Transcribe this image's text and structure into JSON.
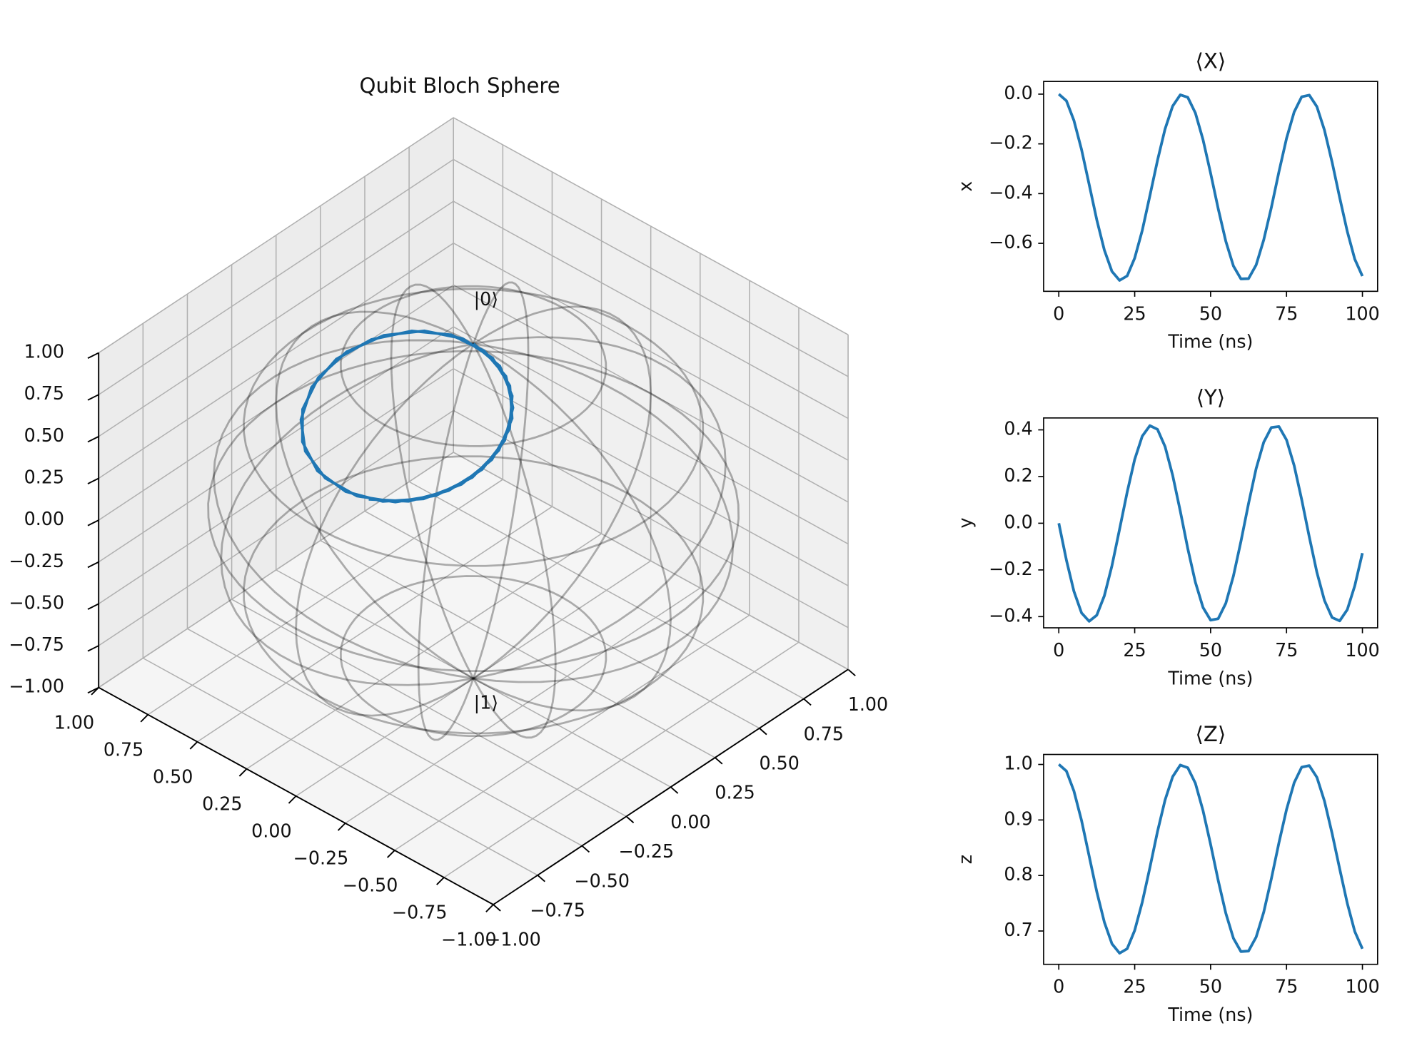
{
  "chart_data": [
    {
      "type": "bloch3d",
      "title": "Qubit Bloch Sphere",
      "annotations": [
        "|0⟩",
        "|1⟩"
      ],
      "color": "#1f77b4",
      "x": [
        0,
        -0.027,
        -0.106,
        -0.223,
        -0.363,
        -0.505,
        -0.627,
        -0.713,
        -0.749,
        -0.731,
        -0.66,
        -0.548,
        -0.409,
        -0.267,
        -0.14,
        -0.048,
        -0.003,
        -0.013,
        -0.076,
        -0.183,
        -0.318,
        -0.461,
        -0.592,
        -0.691,
        -0.743,
        -0.742,
        -0.687,
        -0.586,
        -0.456,
        -0.312,
        -0.178,
        -0.072,
        -0.011,
        -0.004,
        -0.05,
        -0.145,
        -0.273,
        -0.416,
        -0.552,
        -0.664,
        -0.732
      ],
      "y": [
        0,
        -0.158,
        -0.292,
        -0.384,
        -0.42,
        -0.394,
        -0.311,
        -0.182,
        -0.026,
        0.133,
        0.273,
        0.373,
        0.418,
        0.402,
        0.328,
        0.205,
        0.052,
        -0.109,
        -0.253,
        -0.361,
        -0.415,
        -0.409,
        -0.343,
        -0.226,
        -0.078,
        0.084,
        0.234,
        0.347,
        0.41,
        0.414,
        0.357,
        0.247,
        0.102,
        -0.058,
        -0.21,
        -0.331,
        -0.404,
        -0.418,
        -0.37,
        -0.268,
        -0.128
      ],
      "z": [
        1,
        0.988,
        0.952,
        0.899,
        0.835,
        0.771,
        0.716,
        0.677,
        0.66,
        0.668,
        0.701,
        0.752,
        0.814,
        0.879,
        0.936,
        0.978,
        0.999,
        0.994,
        0.966,
        0.917,
        0.856,
        0.791,
        0.732,
        0.687,
        0.663,
        0.664,
        0.689,
        0.734,
        0.794,
        0.859,
        0.919,
        0.967,
        0.995,
        0.998,
        0.977,
        0.934,
        0.876,
        0.812,
        0.75,
        0.699,
        0.668
      ],
      "xlim": [
        -1,
        1
      ],
      "ylim": [
        -1,
        1
      ],
      "zlim": [
        -1,
        1
      ],
      "xticks": [
        {
          "value": -1,
          "label": "−1.00"
        },
        {
          "value": -0.75,
          "label": "−0.75"
        },
        {
          "value": -0.5,
          "label": "−0.50"
        },
        {
          "value": -0.25,
          "label": "−0.25"
        },
        {
          "value": 0,
          "label": "0.00"
        },
        {
          "value": 0.25,
          "label": "0.25"
        },
        {
          "value": 0.5,
          "label": "0.50"
        },
        {
          "value": 0.75,
          "label": "0.75"
        },
        {
          "value": 1,
          "label": "1.00"
        }
      ],
      "yticks": [
        {
          "value": -1,
          "label": "−1.00"
        },
        {
          "value": -0.75,
          "label": "−0.75"
        },
        {
          "value": -0.5,
          "label": "−0.50"
        },
        {
          "value": -0.25,
          "label": "−0.25"
        },
        {
          "value": 0,
          "label": "0.00"
        },
        {
          "value": 0.25,
          "label": "0.25"
        },
        {
          "value": 0.5,
          "label": "0.50"
        },
        {
          "value": 0.75,
          "label": "0.75"
        },
        {
          "value": 1,
          "label": "1.00"
        }
      ],
      "zticks": [
        {
          "value": -1,
          "label": "−1.00"
        },
        {
          "value": -0.75,
          "label": "−0.75"
        },
        {
          "value": -0.5,
          "label": "−0.50"
        },
        {
          "value": -0.25,
          "label": "−0.25"
        },
        {
          "value": 0,
          "label": "0.00"
        },
        {
          "value": 0.25,
          "label": "0.25"
        },
        {
          "value": 0.5,
          "label": "0.50"
        },
        {
          "value": 0.75,
          "label": "0.75"
        },
        {
          "value": 1,
          "label": "1.00"
        }
      ]
    },
    {
      "type": "line",
      "title": "⟨X⟩",
      "xlabel": "Time (ns)",
      "ylabel": "x",
      "color": "#1f77b4",
      "x": [
        0,
        2.5,
        5,
        7.5,
        10,
        12.5,
        15,
        17.5,
        20,
        22.5,
        25,
        27.5,
        30,
        32.5,
        35,
        37.5,
        40,
        42.5,
        45,
        47.5,
        50,
        52.5,
        55,
        57.5,
        60,
        62.5,
        65,
        67.5,
        70,
        72.5,
        75,
        77.5,
        80,
        82.5,
        85,
        87.5,
        90,
        92.5,
        95,
        97.5,
        100
      ],
      "values": [
        0,
        -0.027,
        -0.106,
        -0.223,
        -0.363,
        -0.505,
        -0.627,
        -0.713,
        -0.749,
        -0.731,
        -0.66,
        -0.548,
        -0.409,
        -0.267,
        -0.14,
        -0.048,
        -0.003,
        -0.013,
        -0.076,
        -0.183,
        -0.318,
        -0.461,
        -0.592,
        -0.691,
        -0.743,
        -0.742,
        -0.687,
        -0.586,
        -0.456,
        -0.312,
        -0.178,
        -0.072,
        -0.011,
        -0.004,
        -0.05,
        -0.145,
        -0.273,
        -0.416,
        -0.552,
        -0.664,
        -0.732
      ],
      "xlim": [
        -5,
        105
      ],
      "ylim": [
        -0.793,
        0.051
      ],
      "xticks": [
        0,
        25,
        50,
        75,
        100
      ],
      "yticks": [
        {
          "value": -0.6,
          "label": "−0.6"
        },
        {
          "value": -0.4,
          "label": "−0.4"
        },
        {
          "value": -0.2,
          "label": "−0.2"
        },
        {
          "value": 0,
          "label": "0.0"
        }
      ]
    },
    {
      "type": "line",
      "title": "⟨Y⟩",
      "xlabel": "Time (ns)",
      "ylabel": "y",
      "color": "#1f77b4",
      "x": [
        0,
        2.5,
        5,
        7.5,
        10,
        12.5,
        15,
        17.5,
        20,
        22.5,
        25,
        27.5,
        30,
        32.5,
        35,
        37.5,
        40,
        42.5,
        45,
        47.5,
        50,
        52.5,
        55,
        57.5,
        60,
        62.5,
        65,
        67.5,
        70,
        72.5,
        75,
        77.5,
        80,
        82.5,
        85,
        87.5,
        90,
        92.5,
        95,
        97.5,
        100
      ],
      "values": [
        0,
        -0.158,
        -0.292,
        -0.384,
        -0.42,
        -0.394,
        -0.311,
        -0.182,
        -0.026,
        0.133,
        0.273,
        0.373,
        0.418,
        0.402,
        0.328,
        0.205,
        0.052,
        -0.109,
        -0.253,
        -0.361,
        -0.415,
        -0.409,
        -0.343,
        -0.226,
        -0.078,
        0.084,
        0.234,
        0.347,
        0.41,
        0.414,
        0.357,
        0.247,
        0.102,
        -0.058,
        -0.21,
        -0.331,
        -0.404,
        -0.418,
        -0.37,
        -0.268,
        -0.128
      ],
      "xlim": [
        -5,
        105
      ],
      "ylim": [
        -0.448,
        0.451
      ],
      "xticks": [
        0,
        25,
        50,
        75,
        100
      ],
      "yticks": [
        {
          "value": -0.4,
          "label": "−0.4"
        },
        {
          "value": -0.2,
          "label": "−0.2"
        },
        {
          "value": 0,
          "label": "0.0"
        },
        0.2,
        0.4
      ]
    },
    {
      "type": "line",
      "title": "⟨Z⟩",
      "xlabel": "Time (ns)",
      "ylabel": "z",
      "color": "#1f77b4",
      "x": [
        0,
        2.5,
        5,
        7.5,
        10,
        12.5,
        15,
        17.5,
        20,
        22.5,
        25,
        27.5,
        30,
        32.5,
        35,
        37.5,
        40,
        42.5,
        45,
        47.5,
        50,
        52.5,
        55,
        57.5,
        60,
        62.5,
        65,
        67.5,
        70,
        72.5,
        75,
        77.5,
        80,
        82.5,
        85,
        87.5,
        90,
        92.5,
        95,
        97.5,
        100
      ],
      "values": [
        1,
        0.988,
        0.952,
        0.899,
        0.835,
        0.771,
        0.716,
        0.677,
        0.66,
        0.668,
        0.701,
        0.752,
        0.814,
        0.879,
        0.936,
        0.978,
        0.999,
        0.994,
        0.966,
        0.917,
        0.856,
        0.791,
        0.732,
        0.687,
        0.663,
        0.664,
        0.689,
        0.734,
        0.794,
        0.859,
        0.919,
        0.967,
        0.995,
        0.998,
        0.977,
        0.934,
        0.876,
        0.812,
        0.75,
        0.699,
        0.668
      ],
      "xlim": [
        -5,
        105
      ],
      "ylim": [
        0.64,
        1.018
      ],
      "xticks": [
        0,
        25,
        50,
        75,
        100
      ],
      "yticks": [
        0.7,
        0.8,
        0.9,
        {
          "value": 1,
          "label": "1.0"
        }
      ]
    }
  ]
}
